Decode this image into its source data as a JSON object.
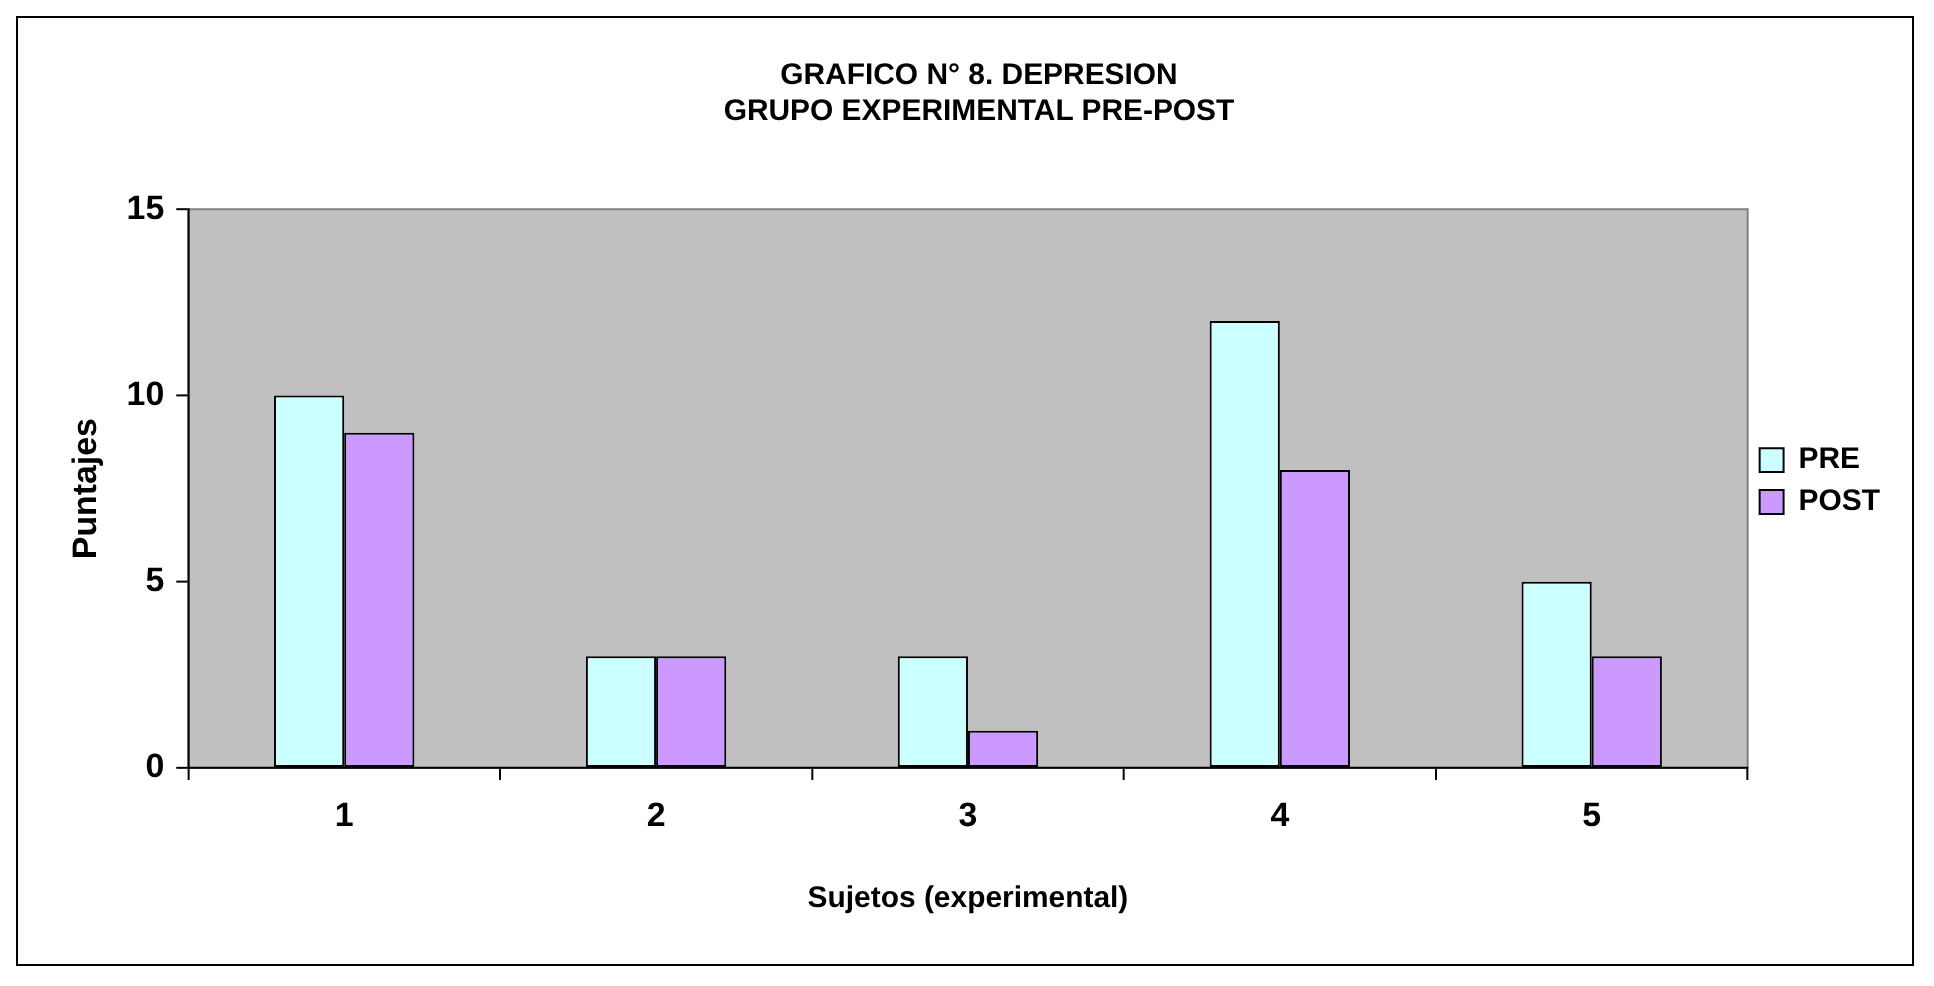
{
  "chart_data": {
    "type": "bar",
    "title": "GRAFICO N° 8. DEPRESION\nGRUPO EXPERIMENTAL PRE-POST",
    "xlabel": "Sujetos (experimental)",
    "ylabel": "Puntajes",
    "categories": [
      "1",
      "2",
      "3",
      "4",
      "5"
    ],
    "series": [
      {
        "name": "PRE",
        "color": "#ccffff",
        "values": [
          10,
          3,
          3,
          12,
          5
        ]
      },
      {
        "name": "POST",
        "color": "#cc99ff",
        "values": [
          9,
          3,
          1,
          8,
          3
        ]
      }
    ],
    "ylim": [
      0,
      15
    ],
    "yticks": [
      0,
      5,
      10,
      15
    ],
    "grid": false,
    "legend": "right"
  }
}
